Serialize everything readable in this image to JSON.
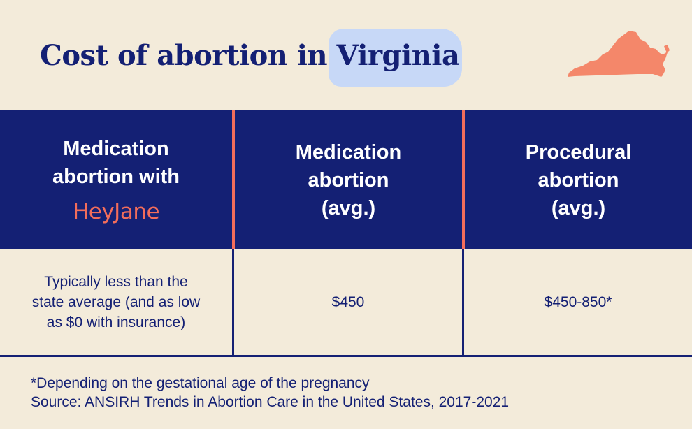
{
  "header": {
    "title_prefix": "Cost of abortion in ",
    "title_state": "Virginia",
    "state_map_icon": "virginia-state-map",
    "state_map_color": "#f4876a"
  },
  "table": {
    "columns": [
      {
        "lines": [
          "Medication",
          "abortion with"
        ],
        "logo": "HeyJane"
      },
      {
        "lines": [
          "Medication",
          "abortion",
          "(avg.)"
        ]
      },
      {
        "lines": [
          "Procedural",
          "abortion",
          "(avg.)"
        ]
      }
    ],
    "row": [
      {
        "lines": [
          "Typically less than the",
          "state average (and as low",
          "as $0 with insurance)"
        ]
      },
      {
        "lines": [
          "$450"
        ]
      },
      {
        "lines": [
          "$450-850*"
        ]
      }
    ]
  },
  "footnotes": {
    "note": "*Depending on the gestational age of the pregnancy",
    "source": "Source: ANSIRH Trends in Abortion Care in the United States, 2017-2021"
  },
  "colors": {
    "background": "#f3ebda",
    "navy": "#142074",
    "coral": "#f26d5b",
    "highlight": "#c7d8f7"
  }
}
